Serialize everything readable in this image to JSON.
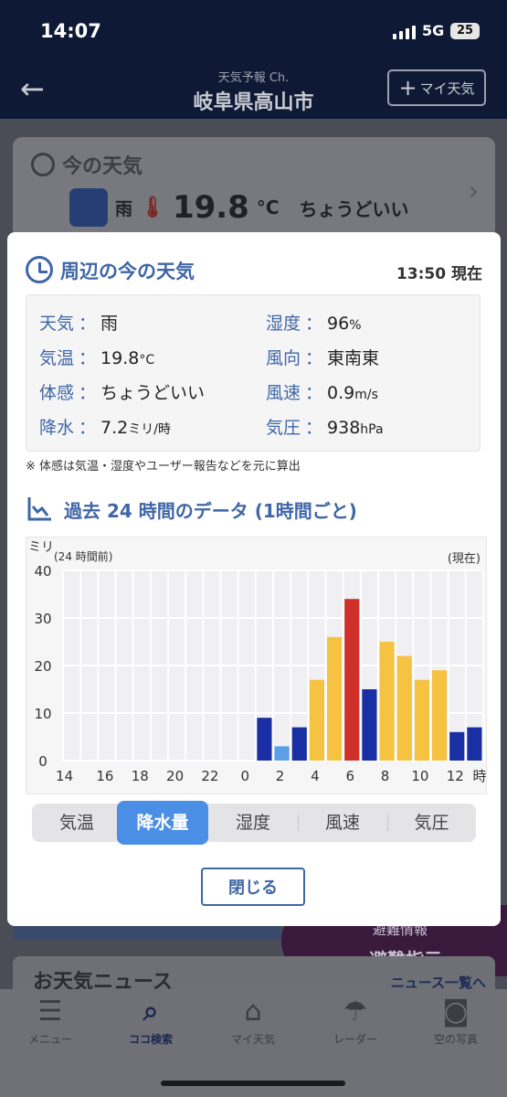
{
  "status": {
    "time": "14:07",
    "network": "5G",
    "battery": "25"
  },
  "appbar": {
    "subtitle": "天気予報 Ch.",
    "title": "岐阜県高山市",
    "my_weather_label": "マイ天気"
  },
  "background_card": {
    "title": "今の天気",
    "condition": "雨",
    "temp": "19.8",
    "temp_unit": "°C",
    "feel": "ちょうどいい"
  },
  "background_banner": {
    "evac_top": "避難情報",
    "evac_bottom": "避難指示"
  },
  "background_news": {
    "title": "お天気ニュース",
    "link": "ニュース一覧へ"
  },
  "tabbar": {
    "items": [
      {
        "label": "メニュー",
        "icon": "menu-icon"
      },
      {
        "label": "ココ検索",
        "icon": "search-icon"
      },
      {
        "label": "マイ天気",
        "icon": "home-icon"
      },
      {
        "label": "レーダー",
        "icon": "umbrella-icon"
      },
      {
        "label": "空の写真",
        "icon": "camera-icon"
      }
    ]
  },
  "modal": {
    "title": "周辺の今の天気",
    "observed_time": "13:50 現在",
    "observations": {
      "weather": {
        "label": "天気",
        "value": "雨"
      },
      "humidity": {
        "label": "湿度",
        "value": "96",
        "unit": "%"
      },
      "temperature": {
        "label": "気温",
        "value": "19.8",
        "unit": "°C"
      },
      "wind_direction": {
        "label": "風向",
        "value": "東南東"
      },
      "feels_like": {
        "label": "体感",
        "value": "ちょうどいい"
      },
      "wind_speed": {
        "label": "風速",
        "value": "0.9",
        "unit": "m/s"
      },
      "precipitation": {
        "label": "降水",
        "value": "7.2",
        "unit": "ミリ/時"
      },
      "pressure": {
        "label": "気圧",
        "value": "938",
        "unit": "hPa"
      }
    },
    "separator": "：",
    "note": "※ 体感は気温・湿度やユーザー報告などを元に算出",
    "history_title": "過去 24 時間のデータ (1時間ごと)",
    "chart_unit": "ミリ",
    "chart_left_label": "(24 時間前)",
    "chart_right_label": "(現在)",
    "tabs": [
      "気温",
      "降水量",
      "湿度",
      "風速",
      "気圧"
    ],
    "active_tab": "降水量",
    "close_label": "閉じる"
  },
  "colors": {
    "accent": "#3f66a6",
    "active_tab": "#4a8ee6",
    "bar_dark_blue": "#1a2fa3",
    "bar_light_blue": "#5b9fe6",
    "bar_yellow": "#f5c242",
    "bar_red": "#d0302a"
  },
  "chart_data": {
    "type": "bar",
    "ylabel": "ミリ",
    "ylim": [
      0,
      40
    ],
    "yticks": [
      0,
      10,
      20,
      30,
      40
    ],
    "x_ticks": [
      "14",
      "16",
      "18",
      "20",
      "22",
      "0",
      "2",
      "4",
      "6",
      "8",
      "10",
      "12"
    ],
    "x_unit": "時",
    "hours": [
      14,
      15,
      16,
      17,
      18,
      19,
      20,
      21,
      22,
      23,
      0,
      1,
      2,
      3,
      4,
      5,
      6,
      7,
      8,
      9,
      10,
      11,
      12,
      13
    ],
    "values": [
      0,
      0,
      0,
      0,
      0,
      0,
      0,
      0,
      0,
      0,
      0,
      9,
      3,
      7,
      17,
      26,
      34,
      15,
      25,
      22,
      17,
      19,
      6,
      7
    ],
    "bar_colors": [
      "",
      "",
      "",
      "",
      "",
      "",
      "",
      "",
      "",
      "",
      "",
      "#1a2fa3",
      "#5b9fe6",
      "#1a2fa3",
      "#f5c242",
      "#f5c242",
      "#d0302a",
      "#1a2fa3",
      "#f5c242",
      "#f5c242",
      "#f5c242",
      "#f5c242",
      "#1a2fa3",
      "#1a2fa3"
    ],
    "grid": true
  }
}
